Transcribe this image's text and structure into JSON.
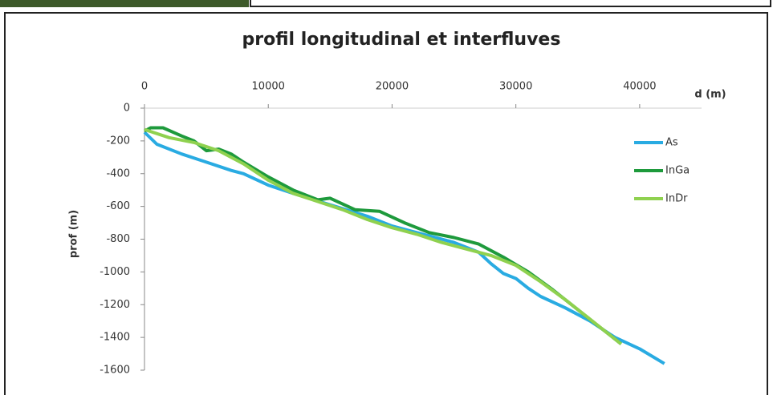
{
  "chart_data": {
    "type": "line",
    "title": "profil longitudinal et interfluves",
    "xlabel": "d (m)",
    "ylabel": "prof (m)",
    "xlim": [
      0,
      45000
    ],
    "xticks": [
      0,
      10000,
      20000,
      30000,
      40000
    ],
    "ylim": [
      -1600,
      0
    ],
    "yticks": [
      0,
      -200,
      -400,
      -600,
      -800,
      -1000,
      -1200,
      -1400,
      -1600
    ],
    "legend": "right",
    "series": [
      {
        "name": "As",
        "color": "#29abe2",
        "x": [
          0,
          1000,
          3000,
          5000,
          7000,
          8000,
          10000,
          12000,
          15000,
          18000,
          20000,
          22000,
          25000,
          27000,
          28000,
          29000,
          30000,
          31000,
          32000,
          34000,
          36000,
          38000,
          40000,
          42000
        ],
        "values": [
          -147,
          -220,
          -280,
          -330,
          -380,
          -400,
          -470,
          -520,
          -590,
          -660,
          -720,
          -760,
          -820,
          -880,
          -950,
          -1010,
          -1040,
          -1100,
          -1150,
          -1220,
          -1300,
          -1400,
          -1470,
          -1560
        ]
      },
      {
        "name": "InGa",
        "color": "#1e9a3c",
        "x": [
          0,
          500,
          1500,
          3000,
          4000,
          5000,
          6000,
          7000,
          8000,
          10000,
          12000,
          14000,
          15000,
          17000,
          19000,
          21000,
          23000,
          25000,
          27000,
          29000,
          31000,
          33000,
          35000,
          37000,
          38500
        ],
        "values": [
          -140,
          -120,
          -120,
          -170,
          -200,
          -260,
          -250,
          -280,
          -330,
          -420,
          -500,
          -560,
          -550,
          -620,
          -630,
          -700,
          -760,
          -790,
          -830,
          -910,
          -1000,
          -1110,
          -1230,
          -1350,
          -1440
        ]
      },
      {
        "name": "InDr",
        "color": "#8fd14f",
        "x": [
          0,
          2000,
          4000,
          6000,
          8000,
          10000,
          12000,
          14000,
          16000,
          18000,
          20000,
          22000,
          24000,
          26000,
          28000,
          30000,
          32000,
          34000,
          36000,
          38500
        ],
        "values": [
          -130,
          -180,
          -210,
          -260,
          -340,
          -440,
          -520,
          -570,
          -620,
          -680,
          -730,
          -770,
          -820,
          -860,
          -900,
          -960,
          -1060,
          -1170,
          -1290,
          -1440
        ]
      }
    ]
  }
}
